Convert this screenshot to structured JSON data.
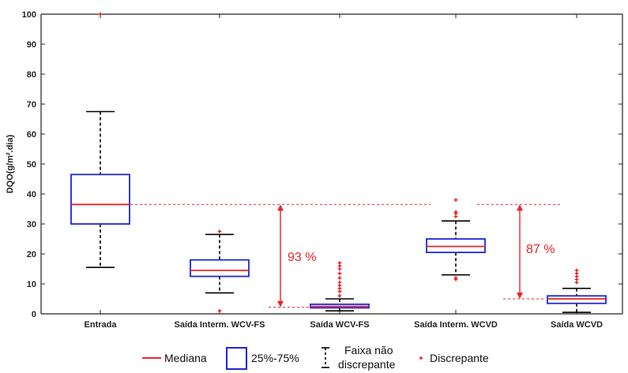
{
  "chart_data": {
    "type": "boxplot",
    "ylabel": "DQO(g/m².dia)",
    "ylim": [
      0,
      100
    ],
    "yticks": [
      0,
      10,
      20,
      30,
      40,
      50,
      60,
      70,
      80,
      90,
      100
    ],
    "grid": false,
    "legend_position": "bottom",
    "categories": [
      "Entrada",
      "Saída Interm. WCV-FS",
      "Saída WCV-FS",
      "Saída Interm. WCVD",
      "Saída WCVD"
    ],
    "boxes": [
      {
        "category": "Entrada",
        "whisker_low": 15.5,
        "q1": 30,
        "median": 36.5,
        "q3": 46.5,
        "whisker_high": 67.5,
        "outliers": [
          100
        ]
      },
      {
        "category": "Saída Interm. WCV-FS",
        "whisker_low": 7,
        "q1": 12.5,
        "median": 14.5,
        "q3": 18,
        "whisker_high": 26.5,
        "outliers": [
          27.5,
          1
        ]
      },
      {
        "category": "Saída WCV-FS",
        "whisker_low": 1,
        "q1": 2,
        "median": 2.5,
        "q3": 3.2,
        "whisker_high": 5,
        "outliers": [
          6,
          7.5,
          8.5,
          9.5,
          10.5,
          12,
          13.5,
          15,
          16,
          17
        ]
      },
      {
        "category": "Saída Interm. WCVD",
        "whisker_low": 13,
        "q1": 20.5,
        "median": 22.5,
        "q3": 25,
        "whisker_high": 31,
        "outliers": [
          32.5,
          33.5,
          34,
          38,
          12,
          11.5
        ]
      },
      {
        "category": "Saída WCVD",
        "whisker_low": 0.5,
        "q1": 3.5,
        "median": 5,
        "q3": 6,
        "whisker_high": 8.5,
        "outliers": [
          10.5,
          11.5,
          12.5,
          13.5,
          14.5
        ]
      }
    ],
    "annotations": [
      {
        "text": "93 %",
        "from": 36.5,
        "to": 2.2
      },
      {
        "text": "87 %",
        "from": 36.5,
        "to": 5
      }
    ],
    "legend": {
      "median": "Mediana",
      "box": "25%-75%",
      "range_line1": "Faixa não",
      "range_line2": "discrepante",
      "outlier": "Discrepante"
    },
    "colors": {
      "median": "#e8262a",
      "box": "#1f27d6",
      "whisker": "#000000",
      "outlier": "#e8262a",
      "annotation": "#e8262a"
    }
  }
}
